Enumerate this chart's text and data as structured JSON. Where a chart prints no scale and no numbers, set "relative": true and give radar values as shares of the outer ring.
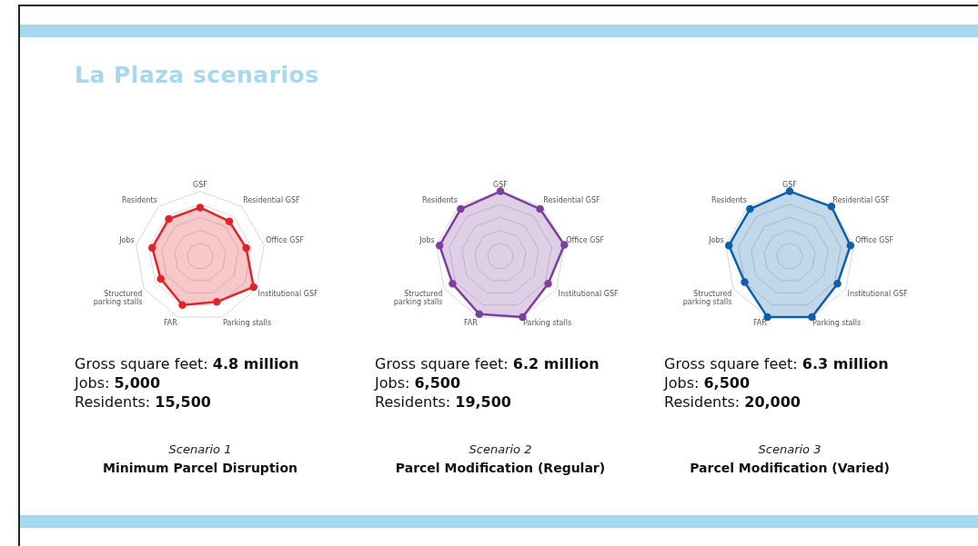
{
  "chart_data": [
    {
      "type": "other",
      "title": "La Plaza scenarios"
    },
    {
      "type": "radar",
      "relative": true,
      "title": "Minimum Parcel Disruption",
      "subtitle": "Scenario 1",
      "categories": [
        "GSF",
        "Residential GSF",
        "Office GSF",
        "Institutional GSF",
        "Parking stalls",
        "FAR",
        "Structured parking stalls",
        "Jobs",
        "Residents"
      ],
      "marker": "circle",
      "legend": false,
      "series": [
        {
          "color": "#e0242b",
          "values": [
            0.75,
            0.7,
            0.72,
            0.95,
            0.75,
            0.8,
            0.7,
            0.75,
            0.75
          ]
        }
      ],
      "annotations": [
        "Gross square feet: 4.8 million",
        "Jobs: 5,000",
        "Residents: 15,500"
      ]
    },
    {
      "type": "radar",
      "relative": true,
      "title": "Parcel Modification (Regular)",
      "subtitle": "Scenario 2",
      "categories": [
        "GSF",
        "Residential GSF",
        "Office GSF",
        "Institutional GSF",
        "Parking stalls",
        "FAR",
        "Structured parking stalls",
        "Jobs",
        "Residents"
      ],
      "marker": "circle",
      "legend": false,
      "series": [
        {
          "color": "#7b3f9e",
          "values": [
            1,
            0.95,
            1,
            0.85,
            1,
            0.95,
            0.85,
            0.95,
            0.95
          ]
        }
      ],
      "annotations": [
        "Gross square feet: 6.2 million",
        "Jobs: 6,500",
        "Residents: 19,500"
      ]
    },
    {
      "type": "radar",
      "relative": true,
      "title": "Parcel Modification (Varied)",
      "subtitle": "Scenario 3",
      "categories": [
        "GSF",
        "Residential GSF",
        "Office GSF",
        "Institutional GSF",
        "Parking stalls",
        "FAR",
        "Structured parking stalls",
        "Jobs",
        "Residents"
      ],
      "marker": "circle",
      "legend": false,
      "series": [
        {
          "color": "#0b5fad",
          "values": [
            1,
            1,
            0.95,
            0.85,
            1,
            1,
            0.8,
            0.95,
            0.95
          ]
        }
      ],
      "annotations": [
        "Gross square feet: 6.3 million",
        "Jobs: 6,500",
        "Residents: 20,000"
      ]
    }
  ]
}
